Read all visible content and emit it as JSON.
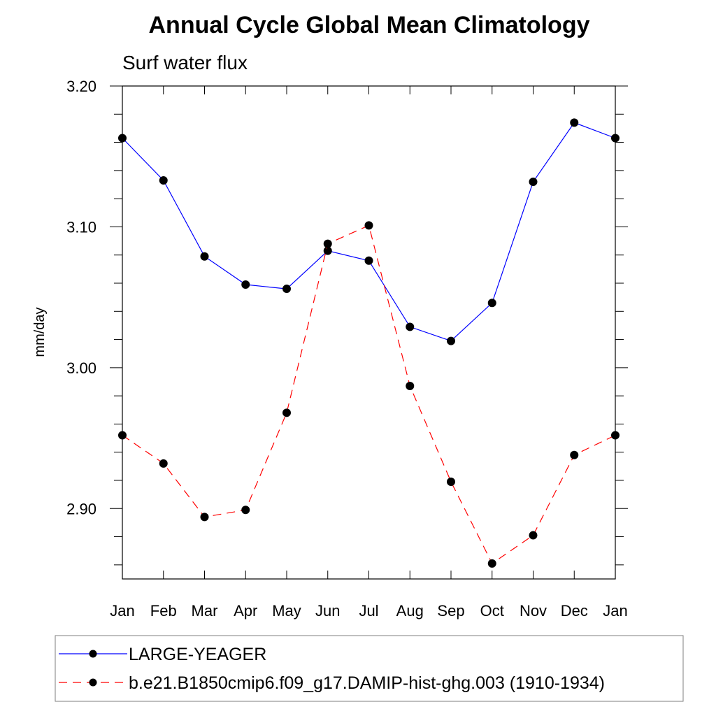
{
  "chart_data": {
    "type": "line",
    "title": "Annual Cycle Global Mean Climatology",
    "subtitle": "Surf water flux",
    "xlabel": "",
    "ylabel": "mm/day",
    "categories": [
      "Jan",
      "Feb",
      "Mar",
      "Apr",
      "May",
      "Jun",
      "Jul",
      "Aug",
      "Sep",
      "Oct",
      "Nov",
      "Dec",
      "Jan"
    ],
    "ylim": [
      2.85,
      3.2
    ],
    "yticks": [
      {
        "value": 2.9,
        "label": "2.90"
      },
      {
        "value": 3.0,
        "label": "3.00"
      },
      {
        "value": 3.1,
        "label": "3.10"
      },
      {
        "value": 3.2,
        "label": "3.20"
      }
    ],
    "grid": false,
    "legend_position": "bottom",
    "series": [
      {
        "name": "LARGE-YEAGER",
        "color": "#0000ff",
        "dash": "solid",
        "marker": "filled-circle",
        "values": [
          3.163,
          3.133,
          3.079,
          3.059,
          3.056,
          3.083,
          3.076,
          3.029,
          3.019,
          3.046,
          3.132,
          3.174,
          3.163
        ]
      },
      {
        "name": "b.e21.B1850cmip6.f09_g17.DAMIP-hist-ghg.003 (1910-1934)",
        "color": "#ff0000",
        "dash": "dashed",
        "marker": "filled-circle",
        "values": [
          2.952,
          2.932,
          2.894,
          2.899,
          2.968,
          3.088,
          3.101,
          2.987,
          2.919,
          2.861,
          2.881,
          2.938,
          2.952
        ]
      }
    ]
  }
}
